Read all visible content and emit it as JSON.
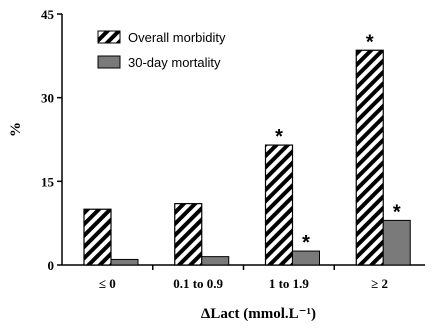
{
  "chart_data": {
    "type": "bar",
    "title": "",
    "xlabel": "ΔLact (mmol.L⁻¹)",
    "ylabel": "%",
    "ylim": [
      0,
      45
    ],
    "yticks": [
      0,
      15,
      30,
      45
    ],
    "categories": [
      "≤ 0",
      "0.1 to 0.9",
      "1 to 1.9",
      "≥ 2"
    ],
    "series": [
      {
        "name": "Overall morbidity",
        "values": [
          10,
          11,
          21.5,
          38.5
        ],
        "fill": "hatched",
        "significant": [
          false,
          false,
          true,
          true
        ]
      },
      {
        "name": "30-day mortality",
        "values": [
          1,
          1.5,
          2.5,
          8
        ],
        "color": "#7a7a7a",
        "significant": [
          false,
          false,
          true,
          true
        ]
      }
    ],
    "significance_marker": "*",
    "legend_position": "top-left"
  }
}
